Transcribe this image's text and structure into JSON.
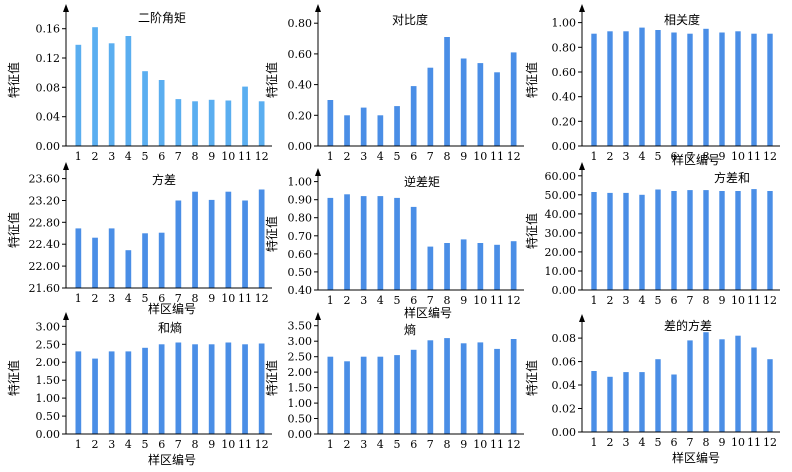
{
  "colors": {
    "bar_light": "#5aaef0",
    "bar": "#4a8ee6",
    "axis": "#000000"
  },
  "chart_data": [
    {
      "type": "bar",
      "title": "二阶角矩",
      "xlabel": "",
      "ylabel": "特征值",
      "categories": [
        "1",
        "2",
        "3",
        "4",
        "5",
        "6",
        "7",
        "8",
        "9",
        "10",
        "11",
        "12"
      ],
      "values": [
        0.138,
        0.162,
        0.14,
        0.15,
        0.102,
        0.09,
        0.064,
        0.061,
        0.063,
        0.062,
        0.081,
        0.061
      ],
      "ylim": [
        0,
        0.18
      ],
      "yticks": [
        "0.00",
        "0.04",
        "0.08",
        "0.12",
        "0.16"
      ],
      "ytick_values": [
        0,
        0.04,
        0.08,
        0.12,
        0.16
      ],
      "color": "#5aaef0",
      "grid": false
    },
    {
      "type": "bar",
      "title": "对比度",
      "xlabel": "",
      "ylabel": "特征值",
      "categories": [
        "1",
        "2",
        "3",
        "4",
        "5",
        "6",
        "7",
        "8",
        "9",
        "10",
        "11",
        "12"
      ],
      "values": [
        0.3,
        0.2,
        0.25,
        0.2,
        0.26,
        0.39,
        0.51,
        0.71,
        0.57,
        0.54,
        0.48,
        0.61
      ],
      "ylim": [
        0,
        0.86
      ],
      "yticks": [
        "0.00",
        "0.20",
        "0.40",
        "0.60",
        "0.80"
      ],
      "ytick_values": [
        0,
        0.2,
        0.4,
        0.6,
        0.8
      ],
      "color": "#4a8ee6",
      "grid": false
    },
    {
      "type": "bar",
      "title": "相关度",
      "xlabel": "样区编号",
      "ylabel": "特征值",
      "categories": [
        "1",
        "2",
        "3",
        "4",
        "5",
        "6",
        "7",
        "8",
        "9",
        "10",
        "11",
        "12"
      ],
      "values": [
        0.91,
        0.93,
        0.93,
        0.96,
        0.94,
        0.92,
        0.91,
        0.95,
        0.92,
        0.93,
        0.91,
        0.91
      ],
      "ylim": [
        0,
        1.07
      ],
      "yticks": [
        "0.00",
        "0.20",
        "0.40",
        "0.60",
        "0.80",
        "1.00"
      ],
      "ytick_values": [
        0,
        0.2,
        0.4,
        0.6,
        0.8,
        1.0
      ],
      "color": "#4a8ee6",
      "grid": false
    },
    {
      "type": "bar",
      "title": "方差",
      "xlabel": "样区编号",
      "ylabel": "特征值",
      "categories": [
        "1",
        "2",
        "3",
        "4",
        "5",
        "6",
        "7",
        "8",
        "9",
        "10",
        "11",
        "12"
      ],
      "values": [
        22.69,
        22.52,
        22.69,
        22.29,
        22.6,
        22.61,
        23.2,
        23.36,
        23.21,
        23.36,
        23.2,
        23.4
      ],
      "ylim": [
        21.6,
        23.72
      ],
      "yticks": [
        "21.60",
        "22.00",
        "22.40",
        "22.80",
        "23.20",
        "23.60"
      ],
      "ytick_values": [
        21.6,
        22.0,
        22.4,
        22.8,
        23.2,
        23.6
      ],
      "color": "#4a8ee6",
      "grid": false
    },
    {
      "type": "bar",
      "title": "逆差矩",
      "xlabel": "样区编号",
      "ylabel": "特征值",
      "categories": [
        "1",
        "2",
        "3",
        "4",
        "5",
        "6",
        "7",
        "8",
        "9",
        "10",
        "11",
        "12"
      ],
      "values": [
        0.91,
        0.93,
        0.92,
        0.92,
        0.91,
        0.86,
        0.64,
        0.66,
        0.68,
        0.66,
        0.65,
        0.67
      ],
      "ylim": [
        0.4,
        1.02
      ],
      "yticks": [
        "0.40",
        "0.50",
        "0.60",
        "0.70",
        "0.80",
        "0.90",
        "1.00"
      ],
      "ytick_values": [
        0.4,
        0.5,
        0.6,
        0.7,
        0.8,
        0.9,
        1.0
      ],
      "color": "#4a8ee6",
      "grid": false
    },
    {
      "type": "bar",
      "title": "方差和",
      "xlabel": "样区编号",
      "ylabel": "特征值",
      "categories": [
        "1",
        "2",
        "3",
        "4",
        "5",
        "6",
        "7",
        "8",
        "9",
        "10",
        "11",
        "12"
      ],
      "values": [
        51.5,
        51.0,
        51.0,
        50.0,
        52.8,
        52.0,
        52.5,
        52.5,
        52.0,
        52.0,
        53.0,
        52.0
      ],
      "ylim": [
        0,
        62
      ],
      "yticks": [
        "0.00",
        "10.00",
        "20.00",
        "30.00",
        "40.00",
        "50.00",
        "60.00"
      ],
      "ytick_values": [
        0,
        10,
        20,
        30,
        40,
        50,
        60
      ],
      "color": "#4a8ee6",
      "grid": false
    },
    {
      "type": "bar",
      "title": "和熵",
      "xlabel": "样区编号",
      "ylabel": "特征值",
      "categories": [
        "1",
        "2",
        "3",
        "4",
        "5",
        "6",
        "7",
        "8",
        "9",
        "10",
        "11",
        "12"
      ],
      "values": [
        2.3,
        2.1,
        2.3,
        2.3,
        2.4,
        2.5,
        2.55,
        2.5,
        2.5,
        2.55,
        2.5,
        2.52
      ],
      "ylim": [
        0,
        3.12
      ],
      "yticks": [
        "0.00",
        "0.50",
        "1.00",
        "1.50",
        "2.00",
        "2.50",
        "3.00"
      ],
      "ytick_values": [
        0,
        0.5,
        1.0,
        1.5,
        2.0,
        2.5,
        3.0
      ],
      "color": "#4a8ee6",
      "grid": false
    },
    {
      "type": "bar",
      "title": "熵",
      "xlabel": "样区编号",
      "ylabel": "特征值",
      "categories": [
        "1",
        "2",
        "3",
        "4",
        "5",
        "6",
        "7",
        "8",
        "9",
        "10",
        "11",
        "12"
      ],
      "values": [
        2.5,
        2.35,
        2.5,
        2.5,
        2.55,
        2.72,
        3.03,
        3.1,
        2.93,
        2.96,
        2.75,
        3.07
      ],
      "ylim": [
        0,
        3.62
      ],
      "yticks": [
        "0.00",
        "0.50",
        "1.00",
        "1.50",
        "2.00",
        "2.50",
        "3.00",
        "3.50"
      ],
      "ytick_values": [
        0,
        0.5,
        1.0,
        1.5,
        2.0,
        2.5,
        3.0,
        3.5
      ],
      "color": "#4a8ee6",
      "grid": false
    },
    {
      "type": "bar",
      "title": "差的方差",
      "xlabel": "样区编号",
      "ylabel": "特征值",
      "categories": [
        "1",
        "2",
        "3",
        "4",
        "5",
        "6",
        "7",
        "8",
        "9",
        "10",
        "11",
        "12"
      ],
      "values": [
        0.052,
        0.047,
        0.051,
        0.051,
        0.062,
        0.049,
        0.078,
        0.085,
        0.079,
        0.082,
        0.072,
        0.062
      ],
      "ylim": [
        0,
        0.092
      ],
      "yticks": [
        "0.00",
        "0.02",
        "0.04",
        "0.06",
        "0.08"
      ],
      "ytick_values": [
        0,
        0.02,
        0.04,
        0.06,
        0.08
      ],
      "color": "#4a8ee6",
      "grid": false
    }
  ]
}
